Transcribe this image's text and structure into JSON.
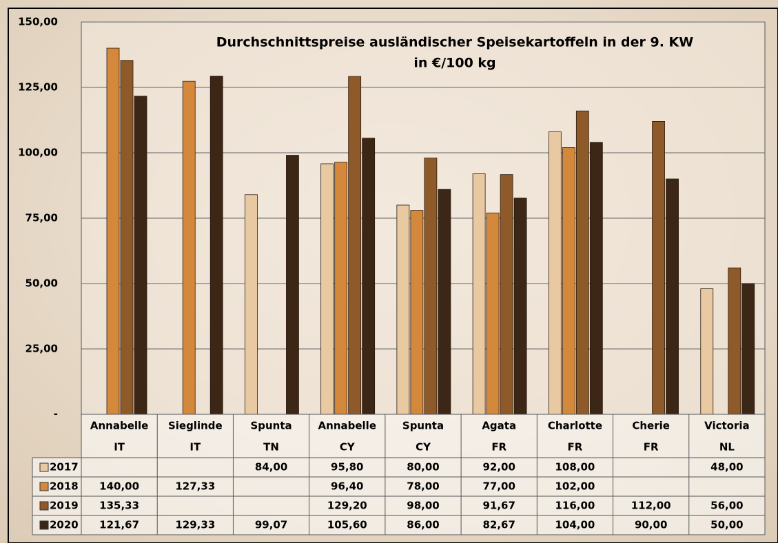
{
  "chart_data": {
    "type": "bar",
    "title": "Durchschnittspreise ausländischer Speisekartoffeln in der 9. KW",
    "subtitle": "in €/100 kg",
    "categories": [
      [
        "Annabelle",
        "IT"
      ],
      [
        "Sieglinde",
        "IT"
      ],
      [
        "Spunta",
        "TN"
      ],
      [
        "Annabelle",
        "CY"
      ],
      [
        "Spunta",
        "CY"
      ],
      [
        "Agata",
        "FR"
      ],
      [
        "Charlotte",
        "FR"
      ],
      [
        "Cherie",
        "FR"
      ],
      [
        "Victoria",
        "NL"
      ]
    ],
    "series": [
      {
        "name": "2017",
        "color": "#e9c9a2",
        "values": [
          null,
          null,
          84,
          95.8,
          80,
          92,
          108,
          null,
          48
        ],
        "value_labels": [
          null,
          null,
          "84,00",
          "95,80",
          "80,00",
          "92,00",
          "108,00",
          null,
          "48,00"
        ]
      },
      {
        "name": "2018",
        "color": "#d4883b",
        "values": [
          140,
          127.33,
          null,
          96.4,
          78,
          77,
          102,
          null,
          null
        ],
        "value_labels": [
          "140,00",
          "127,33",
          null,
          "96,40",
          "78,00",
          "77,00",
          "102,00",
          null,
          null
        ]
      },
      {
        "name": "2019",
        "color": "#8e5a2a",
        "values": [
          135.33,
          null,
          null,
          129.2,
          98,
          91.67,
          116,
          112,
          56
        ],
        "value_labels": [
          "135,33",
          null,
          null,
          "129,20",
          "98,00",
          "91,67",
          "116,00",
          "112,00",
          "56,00"
        ]
      },
      {
        "name": "2020",
        "color": "#3c2616",
        "values": [
          121.67,
          129.33,
          99.07,
          105.6,
          86,
          82.67,
          104,
          90,
          50
        ],
        "value_labels": [
          "121,67",
          "129,33",
          "99,07",
          "105,60",
          "86,00",
          "82,67",
          "104,00",
          "90,00",
          "50,00"
        ]
      }
    ],
    "ylim": [
      0,
      150
    ],
    "yticks": [
      {
        "value": 0,
        "label": "-"
      },
      {
        "value": 25,
        "label": "25,00"
      },
      {
        "value": 50,
        "label": "50,00"
      },
      {
        "value": 75,
        "label": "75,00"
      },
      {
        "value": 100,
        "label": "100,00"
      },
      {
        "value": 125,
        "label": "125,00"
      },
      {
        "value": 150,
        "label": "150,00"
      }
    ],
    "grid": true
  }
}
